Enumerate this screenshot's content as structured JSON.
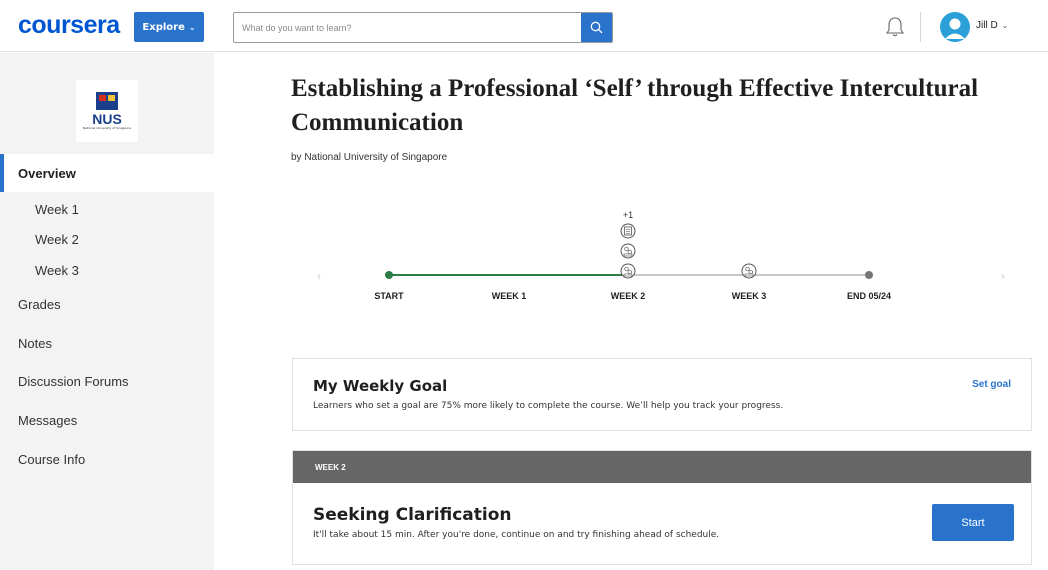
{
  "header": {
    "logo": "coursera",
    "explore_label": "Explore",
    "search": {
      "placeholder": "What do you want to learn?",
      "value": ""
    },
    "user_name": "Jill D"
  },
  "sidebar": {
    "university_short": "NUS",
    "university_full": "National University of Singapore",
    "items": [
      {
        "label": "Overview",
        "active": true
      },
      {
        "label": "Week 1"
      },
      {
        "label": "Week 2"
      },
      {
        "label": "Week 3"
      },
      {
        "label": "Grades"
      },
      {
        "label": "Notes"
      },
      {
        "label": "Discussion Forums"
      },
      {
        "label": "Messages"
      },
      {
        "label": "Course Info"
      }
    ]
  },
  "course": {
    "title": "Establishing a Professional ‘Self’ through Effective Intercultural Communication",
    "byline": "by National University of Singapore"
  },
  "timeline": {
    "progress_position": 0.5,
    "milestones": [
      {
        "label": "START"
      },
      {
        "label": "WEEK 1"
      },
      {
        "label": "WEEK 2"
      },
      {
        "label": "WEEK 3"
      },
      {
        "label": "END 05/24"
      }
    ],
    "extra_count": "+1"
  },
  "goal": {
    "title": "My Weekly Goal",
    "description": "Learners who set a goal are 75% more likely to complete the course. We’ll help you track your progress.",
    "action_label": "Set goal"
  },
  "week_card": {
    "header": "WEEK 2",
    "lesson_title": "Seeking Clarification",
    "lesson_description": "It'll take about 15 min. After you're done, continue on and try finishing ahead of schedule.",
    "button_label": "Start"
  },
  "colors": {
    "brand": "#0056d2",
    "accent": "#2a73cc",
    "progress": "#2e7d46",
    "track": "#c8c8c8"
  }
}
